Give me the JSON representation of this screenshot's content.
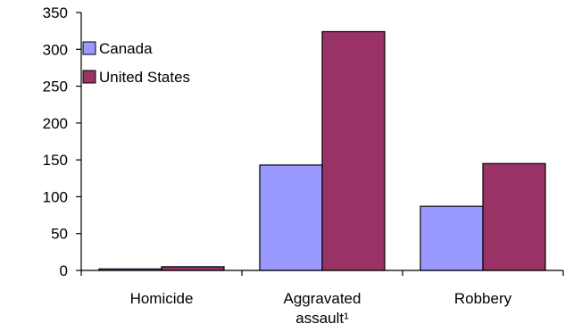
{
  "chart_data": {
    "type": "bar",
    "categories": [
      [
        "Homicide"
      ],
      [
        "Aggravated",
        "assault¹"
      ],
      [
        "Robbery"
      ]
    ],
    "series": [
      {
        "name": "Canada",
        "values": [
          2,
          143,
          87
        ],
        "color": "#9999ff"
      },
      {
        "name": "United States",
        "values": [
          5,
          324,
          145
        ],
        "color": "#993366"
      }
    ],
    "ylim": [
      0,
      350
    ],
    "yticks": [
      0,
      50,
      100,
      150,
      200,
      250,
      300,
      350
    ],
    "grid": false,
    "legend_position": "top-left"
  }
}
